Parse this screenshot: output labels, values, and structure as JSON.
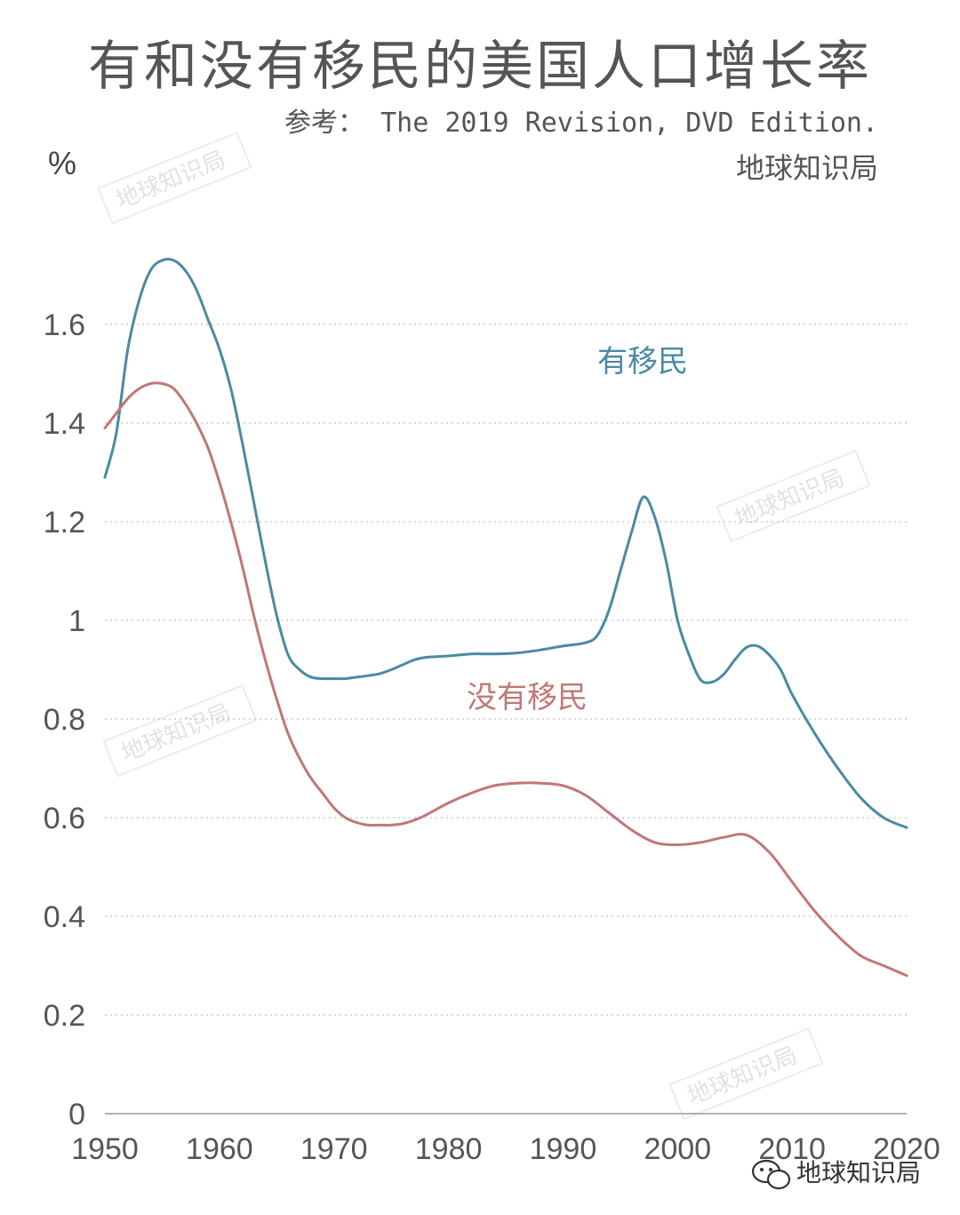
{
  "header": {
    "title": "有和没有移民的美国人口增长率",
    "source": "参考： The 2019 Revision, DVD Edition.",
    "brand": "地球知识局"
  },
  "watermark_text": "地球知识局",
  "footer": {
    "brand": "地球知识局",
    "icon": "wechat-icon"
  },
  "colors": {
    "with_immigration": "#4a8aa3",
    "without_immigration": "#c07777",
    "grid": "#c8c8c8",
    "text": "#555555"
  },
  "chart_data": {
    "type": "line",
    "title": "有和没有移民的美国人口增长率",
    "ylabel": "%",
    "xlabel": "",
    "xlim": [
      1950,
      2020
    ],
    "ylim": [
      0,
      1.8
    ],
    "x_ticks": [
      1950,
      1960,
      1970,
      1980,
      1990,
      2000,
      2010,
      2020
    ],
    "x_tick_labels": [
      "1950",
      "1960",
      "1970",
      "1980",
      "1990",
      "2000",
      "2010",
      "2020"
    ],
    "y_ticks": [
      0,
      0.2,
      0.4,
      0.6,
      0.8,
      1,
      1.2,
      1.4,
      1.6
    ],
    "y_tick_labels": [
      "0",
      "0.2",
      "0.4",
      "0.6",
      "0.8",
      "1",
      "1.2",
      "1.4",
      "1.6"
    ],
    "grid": true,
    "legend": "inline labels",
    "series": [
      {
        "name": "有移民",
        "color": "#4a8aa3",
        "x": [
          1950,
          1951,
          1952,
          1953,
          1954,
          1955,
          1956,
          1957,
          1958,
          1959,
          1960,
          1961,
          1962,
          1963,
          1964,
          1965,
          1966,
          1967,
          1968,
          1969,
          1970,
          1971,
          1972,
          1973,
          1974,
          1975,
          1976,
          1977,
          1978,
          1980,
          1982,
          1983,
          1984,
          1986,
          1988,
          1990,
          1992,
          1993,
          1994,
          1995,
          1996,
          1997,
          1998,
          1999,
          2000,
          2001,
          2002,
          2003,
          2004,
          2005,
          2006,
          2007,
          2008,
          2009,
          2010,
          2012,
          2014,
          2016,
          2018,
          2020
        ],
        "values": [
          1.29,
          1.38,
          1.55,
          1.65,
          1.71,
          1.73,
          1.73,
          1.71,
          1.67,
          1.61,
          1.55,
          1.47,
          1.36,
          1.24,
          1.12,
          1.01,
          0.93,
          0.9,
          0.885,
          0.882,
          0.882,
          0.882,
          0.885,
          0.888,
          0.892,
          0.9,
          0.91,
          0.92,
          0.925,
          0.928,
          0.932,
          0.932,
          0.932,
          0.934,
          0.94,
          0.948,
          0.955,
          0.97,
          1.02,
          1.1,
          1.18,
          1.25,
          1.21,
          1.12,
          1.0,
          0.93,
          0.88,
          0.875,
          0.89,
          0.92,
          0.945,
          0.948,
          0.93,
          0.9,
          0.85,
          0.77,
          0.7,
          0.64,
          0.6,
          0.58
        ]
      },
      {
        "name": "没有移民",
        "color": "#c07777",
        "x": [
          1950,
          1951,
          1952,
          1953,
          1954,
          1955,
          1956,
          1957,
          1958,
          1959,
          1960,
          1961,
          1962,
          1963,
          1964,
          1965,
          1966,
          1967,
          1968,
          1969,
          1970,
          1971,
          1972,
          1973,
          1974,
          1975,
          1976,
          1977,
          1978,
          1980,
          1982,
          1984,
          1986,
          1988,
          1990,
          1992,
          1994,
          1996,
          1998,
          2000,
          2002,
          2004,
          2006,
          2008,
          2010,
          2012,
          2014,
          2016,
          2018,
          2020
        ],
        "values": [
          1.39,
          1.42,
          1.45,
          1.47,
          1.48,
          1.48,
          1.47,
          1.44,
          1.4,
          1.35,
          1.28,
          1.2,
          1.11,
          1.01,
          0.92,
          0.84,
          0.77,
          0.72,
          0.68,
          0.65,
          0.62,
          0.6,
          0.59,
          0.585,
          0.585,
          0.585,
          0.588,
          0.595,
          0.605,
          0.63,
          0.65,
          0.665,
          0.67,
          0.67,
          0.665,
          0.645,
          0.61,
          0.575,
          0.55,
          0.545,
          0.55,
          0.56,
          0.565,
          0.53,
          0.47,
          0.41,
          0.36,
          0.32,
          0.3,
          0.28
        ]
      }
    ]
  }
}
